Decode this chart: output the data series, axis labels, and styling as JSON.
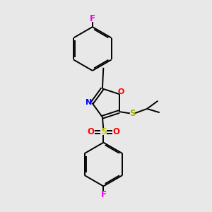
{
  "background_color": "#e8e8e8",
  "bond_color": "#000000",
  "atom_colors": {
    "F": "#ee00ee",
    "O": "#ff0000",
    "N": "#0000ff",
    "S_sulfonyl": "#cccc00",
    "S_thio": "#aaaa00",
    "C": "#000000"
  },
  "figsize": [
    3.0,
    3.0
  ],
  "dpi": 100,
  "lw": 1.4
}
